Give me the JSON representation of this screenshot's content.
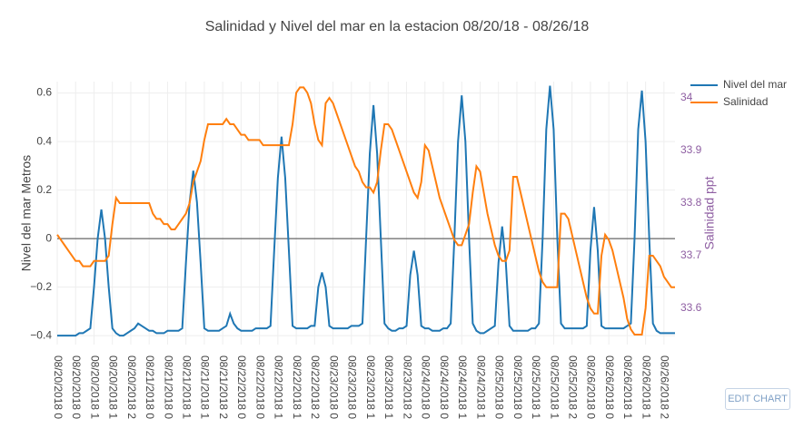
{
  "chart_data": {
    "type": "line",
    "title": "Salinidad y Nivel del mar en la estacion 08/20/18 - 08/26/18",
    "y_label": "Nivel del mar Metros",
    "y2_label": "Salinidad ppt",
    "x": [
      0,
      1,
      2,
      3,
      4,
      5,
      6,
      7,
      8,
      9,
      10,
      11,
      12,
      13,
      14,
      15,
      16,
      17,
      18,
      19,
      20,
      21,
      22,
      23,
      24,
      25,
      26,
      27,
      28,
      29,
      30,
      31,
      32,
      33,
      34,
      35,
      36,
      37,
      38,
      39,
      40,
      41,
      42,
      43,
      44,
      45,
      46,
      47,
      48,
      49,
      50,
      51,
      52,
      53,
      54,
      55,
      56,
      57,
      58,
      59,
      60,
      61,
      62,
      63,
      64,
      65,
      66,
      67,
      68,
      69,
      70,
      71,
      72,
      73,
      74,
      75,
      76,
      77,
      78,
      79,
      80,
      81,
      82,
      83,
      84,
      85,
      86,
      87,
      88,
      89,
      90,
      91,
      92,
      93,
      94,
      95,
      96,
      97,
      98,
      99,
      100,
      101,
      102,
      103,
      104,
      105,
      106,
      107,
      108,
      109,
      110,
      111,
      112,
      113,
      114,
      115,
      116,
      117,
      118,
      119,
      120,
      121,
      122,
      123,
      124,
      125,
      126,
      127,
      128,
      129,
      130,
      131,
      132,
      133,
      134,
      135,
      136,
      137,
      138,
      139,
      140,
      141,
      142,
      143,
      144,
      145,
      146,
      147,
      148,
      149,
      150,
      151,
      152,
      153,
      154,
      155,
      156,
      157,
      158,
      159,
      160,
      161,
      162,
      163,
      164,
      165,
      166,
      167,
      168
    ],
    "series": [
      {
        "name": "Nivel del mar",
        "color": "#1f77b4",
        "values": [
          -0.4,
          -0.4,
          -0.4,
          -0.4,
          -0.4,
          -0.4,
          -0.39,
          -0.39,
          -0.38,
          -0.37,
          -0.2,
          0.0,
          0.12,
          0.0,
          -0.2,
          -0.37,
          -0.39,
          -0.4,
          -0.4,
          -0.39,
          -0.38,
          -0.37,
          -0.35,
          -0.36,
          -0.37,
          -0.38,
          -0.38,
          -0.39,
          -0.39,
          -0.39,
          -0.38,
          -0.38,
          -0.38,
          -0.38,
          -0.37,
          -0.1,
          0.15,
          0.28,
          0.15,
          -0.1,
          -0.37,
          -0.38,
          -0.38,
          -0.38,
          -0.38,
          -0.37,
          -0.36,
          -0.31,
          -0.35,
          -0.37,
          -0.38,
          -0.38,
          -0.38,
          -0.38,
          -0.37,
          -0.37,
          -0.37,
          -0.37,
          -0.36,
          -0.05,
          0.25,
          0.42,
          0.25,
          -0.05,
          -0.36,
          -0.37,
          -0.37,
          -0.37,
          -0.37,
          -0.36,
          -0.36,
          -0.2,
          -0.14,
          -0.2,
          -0.36,
          -0.37,
          -0.37,
          -0.37,
          -0.37,
          -0.37,
          -0.36,
          -0.36,
          -0.36,
          -0.35,
          0.0,
          0.35,
          0.55,
          0.35,
          0.0,
          -0.35,
          -0.37,
          -0.38,
          -0.38,
          -0.37,
          -0.37,
          -0.36,
          -0.15,
          -0.05,
          -0.15,
          -0.36,
          -0.37,
          -0.37,
          -0.38,
          -0.38,
          -0.38,
          -0.37,
          -0.37,
          -0.35,
          0.0,
          0.4,
          0.59,
          0.4,
          0.0,
          -0.35,
          -0.38,
          -0.39,
          -0.39,
          -0.38,
          -0.37,
          -0.36,
          -0.1,
          0.05,
          -0.1,
          -0.36,
          -0.38,
          -0.38,
          -0.38,
          -0.38,
          -0.38,
          -0.37,
          -0.37,
          -0.35,
          0.0,
          0.45,
          0.63,
          0.45,
          0.0,
          -0.35,
          -0.37,
          -0.37,
          -0.37,
          -0.37,
          -0.37,
          -0.37,
          -0.36,
          -0.05,
          0.13,
          -0.05,
          -0.36,
          -0.37,
          -0.37,
          -0.37,
          -0.37,
          -0.37,
          -0.37,
          -0.36,
          -0.35,
          0.0,
          0.45,
          0.61,
          0.4,
          0.0,
          -0.35,
          -0.38,
          -0.39,
          -0.39,
          -0.39,
          -0.39,
          -0.39
        ]
      },
      {
        "name": "Salinidad",
        "color": "#ff7f0e",
        "axis": "y2",
        "values": [
          33.74,
          33.73,
          33.72,
          33.71,
          33.7,
          33.69,
          33.69,
          33.68,
          33.68,
          33.68,
          33.69,
          33.69,
          33.69,
          33.69,
          33.7,
          33.76,
          33.81,
          33.8,
          33.8,
          33.8,
          33.8,
          33.8,
          33.8,
          33.8,
          33.8,
          33.8,
          33.78,
          33.77,
          33.77,
          33.76,
          33.76,
          33.75,
          33.75,
          33.76,
          33.77,
          33.78,
          33.8,
          33.84,
          33.86,
          33.88,
          33.92,
          33.95,
          33.95,
          33.95,
          33.95,
          33.95,
          33.96,
          33.95,
          33.95,
          33.94,
          33.93,
          33.93,
          33.92,
          33.92,
          33.92,
          33.92,
          33.91,
          33.91,
          33.91,
          33.91,
          33.91,
          33.91,
          33.91,
          33.91,
          33.95,
          34.01,
          34.02,
          34.02,
          34.01,
          33.99,
          33.95,
          33.92,
          33.91,
          33.99,
          34.0,
          33.99,
          33.97,
          33.95,
          33.93,
          33.91,
          33.89,
          33.87,
          33.86,
          33.84,
          33.83,
          33.83,
          33.82,
          33.84,
          33.9,
          33.95,
          33.95,
          33.94,
          33.92,
          33.9,
          33.88,
          33.86,
          33.84,
          33.82,
          33.81,
          33.84,
          33.91,
          33.9,
          33.87,
          33.84,
          33.81,
          33.79,
          33.77,
          33.75,
          33.73,
          33.72,
          33.72,
          33.74,
          33.76,
          33.82,
          33.87,
          33.86,
          33.82,
          33.78,
          33.75,
          33.72,
          33.7,
          33.69,
          33.69,
          33.71,
          33.85,
          33.85,
          33.82,
          33.79,
          33.76,
          33.73,
          33.7,
          33.67,
          33.65,
          33.64,
          33.64,
          33.64,
          33.64,
          33.78,
          33.78,
          33.77,
          33.74,
          33.71,
          33.68,
          33.65,
          33.62,
          33.6,
          33.59,
          33.59,
          33.7,
          33.74,
          33.73,
          33.71,
          33.68,
          33.65,
          33.62,
          33.58,
          33.56,
          33.55,
          33.55,
          33.55,
          33.6,
          33.7,
          33.7,
          33.69,
          33.68,
          33.66,
          33.65,
          33.64,
          33.64
        ]
      }
    ],
    "xlim": [
      0,
      168
    ],
    "xticks": [
      {
        "value": 0,
        "label": "08/20/2018 0"
      },
      {
        "value": 5,
        "label": "08/20/2018 0"
      },
      {
        "value": 10,
        "label": "08/20/2018 1"
      },
      {
        "value": 15,
        "label": "08/20/2018 1"
      },
      {
        "value": 20,
        "label": "08/20/2018 2"
      },
      {
        "value": 25,
        "label": "08/21/2018 0"
      },
      {
        "value": 30,
        "label": "08/21/2018 0"
      },
      {
        "value": 35,
        "label": "08/21/2018 1"
      },
      {
        "value": 40,
        "label": "08/21/2018 1"
      },
      {
        "value": 45,
        "label": "08/21/2018 2"
      },
      {
        "value": 50,
        "label": "08/22/2018 0"
      },
      {
        "value": 55,
        "label": "08/22/2018 0"
      },
      {
        "value": 60,
        "label": "08/22/2018 1"
      },
      {
        "value": 65,
        "label": "08/22/2018 1"
      },
      {
        "value": 70,
        "label": "08/22/2018 2"
      },
      {
        "value": 75,
        "label": "08/23/2018 0"
      },
      {
        "value": 80,
        "label": "08/23/2018 0"
      },
      {
        "value": 85,
        "label": "08/23/2018 1"
      },
      {
        "value": 90,
        "label": "08/23/2018 1"
      },
      {
        "value": 95,
        "label": "08/23/2018 2"
      },
      {
        "value": 100,
        "label": "08/24/2018 0"
      },
      {
        "value": 105,
        "label": "08/24/2018 0"
      },
      {
        "value": 110,
        "label": "08/24/2018 1"
      },
      {
        "value": 115,
        "label": "08/24/2018 1"
      },
      {
        "value": 120,
        "label": "08/25/2018 0"
      },
      {
        "value": 125,
        "label": "08/25/2018 0"
      },
      {
        "value": 130,
        "label": "08/25/2018 1"
      },
      {
        "value": 135,
        "label": "08/25/2018 1"
      },
      {
        "value": 140,
        "label": "08/25/2018 2"
      },
      {
        "value": 145,
        "label": "08/26/2018 0"
      },
      {
        "value": 150,
        "label": "08/26/2018 0"
      },
      {
        "value": 155,
        "label": "08/26/2018 1"
      },
      {
        "value": 160,
        "label": "08/26/2018 1"
      },
      {
        "value": 165,
        "label": "08/26/2018 2"
      }
    ],
    "ylim": [
      -0.437,
      0.647
    ],
    "yticks": [
      {
        "value": -0.4,
        "label": "−0.4"
      },
      {
        "value": -0.2,
        "label": "−0.2"
      },
      0,
      0.2,
      0.4,
      0.6
    ],
    "y2lim": [
      33.531,
      34.031
    ],
    "y2ticks": [
      33.6,
      33.7,
      33.8,
      33.9,
      34
    ],
    "y2_color": "#8e5ea2",
    "grid": true,
    "zeroline": true,
    "legend": "top-right"
  },
  "edit_button": "EDIT CHART"
}
